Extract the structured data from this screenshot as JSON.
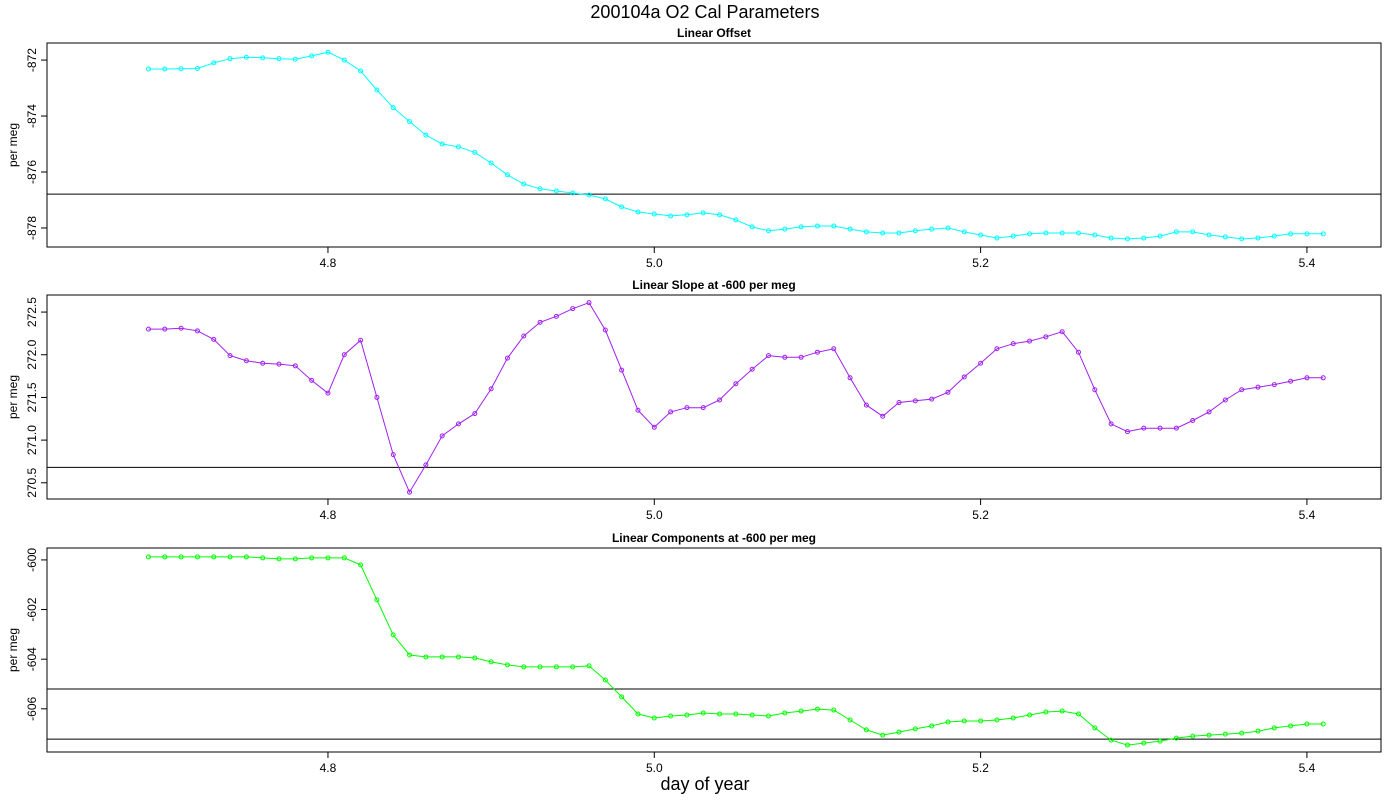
{
  "title": "200104a   O2 Cal Parameters",
  "xlabel": "day of year",
  "chart_data": [
    {
      "type": "line",
      "title": "Linear Offset",
      "ylabel": "per meg",
      "color": "#00ffff",
      "xlim": [
        4.6278,
        5.4454
      ],
      "xticks": [
        4.8,
        {
          "value": 5,
          "label": "5.0"
        },
        5.2,
        5.4
      ],
      "ylim": [
        -878.68,
        -871.39
      ],
      "yticks": [
        -878,
        -876,
        -874,
        -872
      ],
      "hlines": [
        -876.79
      ],
      "x": [
        4.69,
        4.7,
        4.71,
        4.72,
        4.73,
        4.74,
        4.75,
        4.76,
        4.77,
        4.78,
        4.79,
        4.8,
        4.81,
        4.82,
        4.83,
        4.84,
        4.85,
        4.86,
        4.87,
        4.88,
        4.89,
        4.9,
        4.91,
        4.92,
        4.93,
        4.94,
        4.95,
        4.96,
        4.97,
        4.98,
        4.99,
        5,
        5.01,
        5.02,
        5.03,
        5.04,
        5.05,
        5.06,
        5.07,
        5.08,
        5.09,
        5.1,
        5.11,
        5.12,
        5.13,
        5.14,
        5.15,
        5.16,
        5.17,
        5.18,
        5.19,
        5.2,
        5.21,
        5.22,
        5.23,
        5.24,
        5.25,
        5.26,
        5.27,
        5.28,
        5.29,
        5.3,
        5.31,
        5.32,
        5.33,
        5.34,
        5.35,
        5.36,
        5.37,
        5.38,
        5.39,
        5.4,
        5.41
      ],
      "values": [
        -872.32,
        -872.32,
        -872.31,
        -872.3,
        -872.1,
        -871.95,
        -871.9,
        -871.92,
        -871.95,
        -871.97,
        -871.85,
        -871.72,
        -872.0,
        -872.39,
        -873.07,
        -873.7,
        -874.2,
        -874.68,
        -875.0,
        -875.1,
        -875.3,
        -875.68,
        -876.1,
        -876.43,
        -876.6,
        -876.68,
        -876.75,
        -876.82,
        -876.96,
        -877.25,
        -877.43,
        -877.5,
        -877.57,
        -877.53,
        -877.46,
        -877.53,
        -877.71,
        -877.96,
        -878.1,
        -878.04,
        -877.96,
        -877.93,
        -877.93,
        -878.04,
        -878.14,
        -878.18,
        -878.18,
        -878.1,
        -878.04,
        -878.0,
        -878.14,
        -878.25,
        -878.36,
        -878.29,
        -878.21,
        -878.18,
        -878.18,
        -878.18,
        -878.25,
        -878.36,
        -878.39,
        -878.36,
        -878.29,
        -878.14,
        -878.14,
        -878.25,
        -878.32,
        -878.39,
        -878.36,
        -878.29,
        -878.21,
        -878.21,
        -878.21
      ]
    },
    {
      "type": "line",
      "title": "Linear Slope at -600 per meg",
      "ylabel": "per meg",
      "color": "#a020f0",
      "xlim": [
        4.6278,
        5.4454
      ],
      "xticks": [
        4.8,
        {
          "value": 5,
          "label": "5.0"
        },
        5.2,
        5.4
      ],
      "ylim": [
        270.31,
        272.7
      ],
      "yticks": [
        270.5,
        {
          "value": 271,
          "label": "271.0"
        },
        271.5,
        {
          "value": 272,
          "label": "272.0"
        },
        272.5
      ],
      "hlines": [
        270.68
      ],
      "x": [
        4.69,
        4.7,
        4.71,
        4.72,
        4.73,
        4.74,
        4.75,
        4.76,
        4.77,
        4.78,
        4.79,
        4.8,
        4.81,
        4.82,
        4.83,
        4.84,
        4.85,
        4.86,
        4.87,
        4.88,
        4.89,
        4.9,
        4.91,
        4.92,
        4.93,
        4.94,
        4.95,
        4.96,
        4.97,
        4.98,
        4.99,
        5,
        5.01,
        5.02,
        5.03,
        5.04,
        5.05,
        5.06,
        5.07,
        5.08,
        5.09,
        5.1,
        5.11,
        5.12,
        5.13,
        5.14,
        5.15,
        5.16,
        5.17,
        5.18,
        5.19,
        5.2,
        5.21,
        5.22,
        5.23,
        5.24,
        5.25,
        5.26,
        5.27,
        5.28,
        5.29,
        5.3,
        5.31,
        5.32,
        5.33,
        5.34,
        5.35,
        5.36,
        5.37,
        5.38,
        5.39,
        5.4,
        5.41
      ],
      "values": [
        272.3,
        272.3,
        272.31,
        272.28,
        272.18,
        271.99,
        271.93,
        271.9,
        271.89,
        271.87,
        271.7,
        271.55,
        272.0,
        272.17,
        271.5,
        270.83,
        270.39,
        270.71,
        271.05,
        271.19,
        271.31,
        271.6,
        271.96,
        272.22,
        272.38,
        272.45,
        272.54,
        272.61,
        272.29,
        271.82,
        271.35,
        271.15,
        271.33,
        271.38,
        271.38,
        271.47,
        271.66,
        271.83,
        271.99,
        271.97,
        271.97,
        272.03,
        272.07,
        271.73,
        271.41,
        271.28,
        271.44,
        271.46,
        271.48,
        271.56,
        271.74,
        271.9,
        272.07,
        272.13,
        272.16,
        272.21,
        272.27,
        272.03,
        271.59,
        271.19,
        271.1,
        271.14,
        271.14,
        271.14,
        271.23,
        271.33,
        271.47,
        271.59,
        271.62,
        271.65,
        271.69,
        271.73,
        271.73
      ]
    },
    {
      "type": "line",
      "title": "Linear Components at -600 per meg",
      "ylabel": "per meg",
      "color": "#00ff00",
      "xlim": [
        4.6278,
        5.4454
      ],
      "xticks": [
        4.8,
        {
          "value": 5,
          "label": "5.0"
        },
        5.2,
        5.4
      ],
      "ylim": [
        -607.74,
        -599.52
      ],
      "yticks": [
        -606,
        -604,
        -602,
        -600
      ],
      "hlines": [
        -605.2,
        -607.22
      ],
      "x": [
        4.69,
        4.7,
        4.71,
        4.72,
        4.73,
        4.74,
        4.75,
        4.76,
        4.77,
        4.78,
        4.79,
        4.8,
        4.81,
        4.82,
        4.83,
        4.84,
        4.85,
        4.86,
        4.87,
        4.88,
        4.89,
        4.9,
        4.91,
        4.92,
        4.93,
        4.94,
        4.95,
        4.96,
        4.97,
        4.98,
        4.99,
        5,
        5.01,
        5.02,
        5.03,
        5.04,
        5.05,
        5.06,
        5.07,
        5.08,
        5.09,
        5.1,
        5.11,
        5.12,
        5.13,
        5.14,
        5.15,
        5.16,
        5.17,
        5.18,
        5.19,
        5.2,
        5.21,
        5.22,
        5.23,
        5.24,
        5.25,
        5.26,
        5.27,
        5.28,
        5.29,
        5.3,
        5.31,
        5.32,
        5.33,
        5.34,
        5.35,
        5.36,
        5.37,
        5.38,
        5.39,
        5.4,
        5.41
      ],
      "values": [
        -599.88,
        -599.88,
        -599.88,
        -599.88,
        -599.88,
        -599.88,
        -599.88,
        -599.92,
        -599.96,
        -599.96,
        -599.92,
        -599.92,
        -599.92,
        -600.2,
        -601.61,
        -603.02,
        -603.83,
        -603.91,
        -603.91,
        -603.91,
        -603.95,
        -604.11,
        -604.23,
        -604.31,
        -604.31,
        -604.31,
        -604.31,
        -604.27,
        -604.84,
        -605.52,
        -606.21,
        -606.37,
        -606.29,
        -606.25,
        -606.17,
        -606.21,
        -606.21,
        -606.25,
        -606.29,
        -606.17,
        -606.09,
        -606.01,
        -606.05,
        -606.45,
        -606.85,
        -607.06,
        -606.94,
        -606.81,
        -606.69,
        -606.53,
        -606.49,
        -606.49,
        -606.45,
        -606.37,
        -606.25,
        -606.13,
        -606.09,
        -606.21,
        -606.77,
        -607.26,
        -607.46,
        -607.38,
        -607.3,
        -607.18,
        -607.1,
        -607.06,
        -607.02,
        -606.98,
        -606.9,
        -606.77,
        -606.69,
        -606.61,
        -606.61
      ]
    }
  ]
}
